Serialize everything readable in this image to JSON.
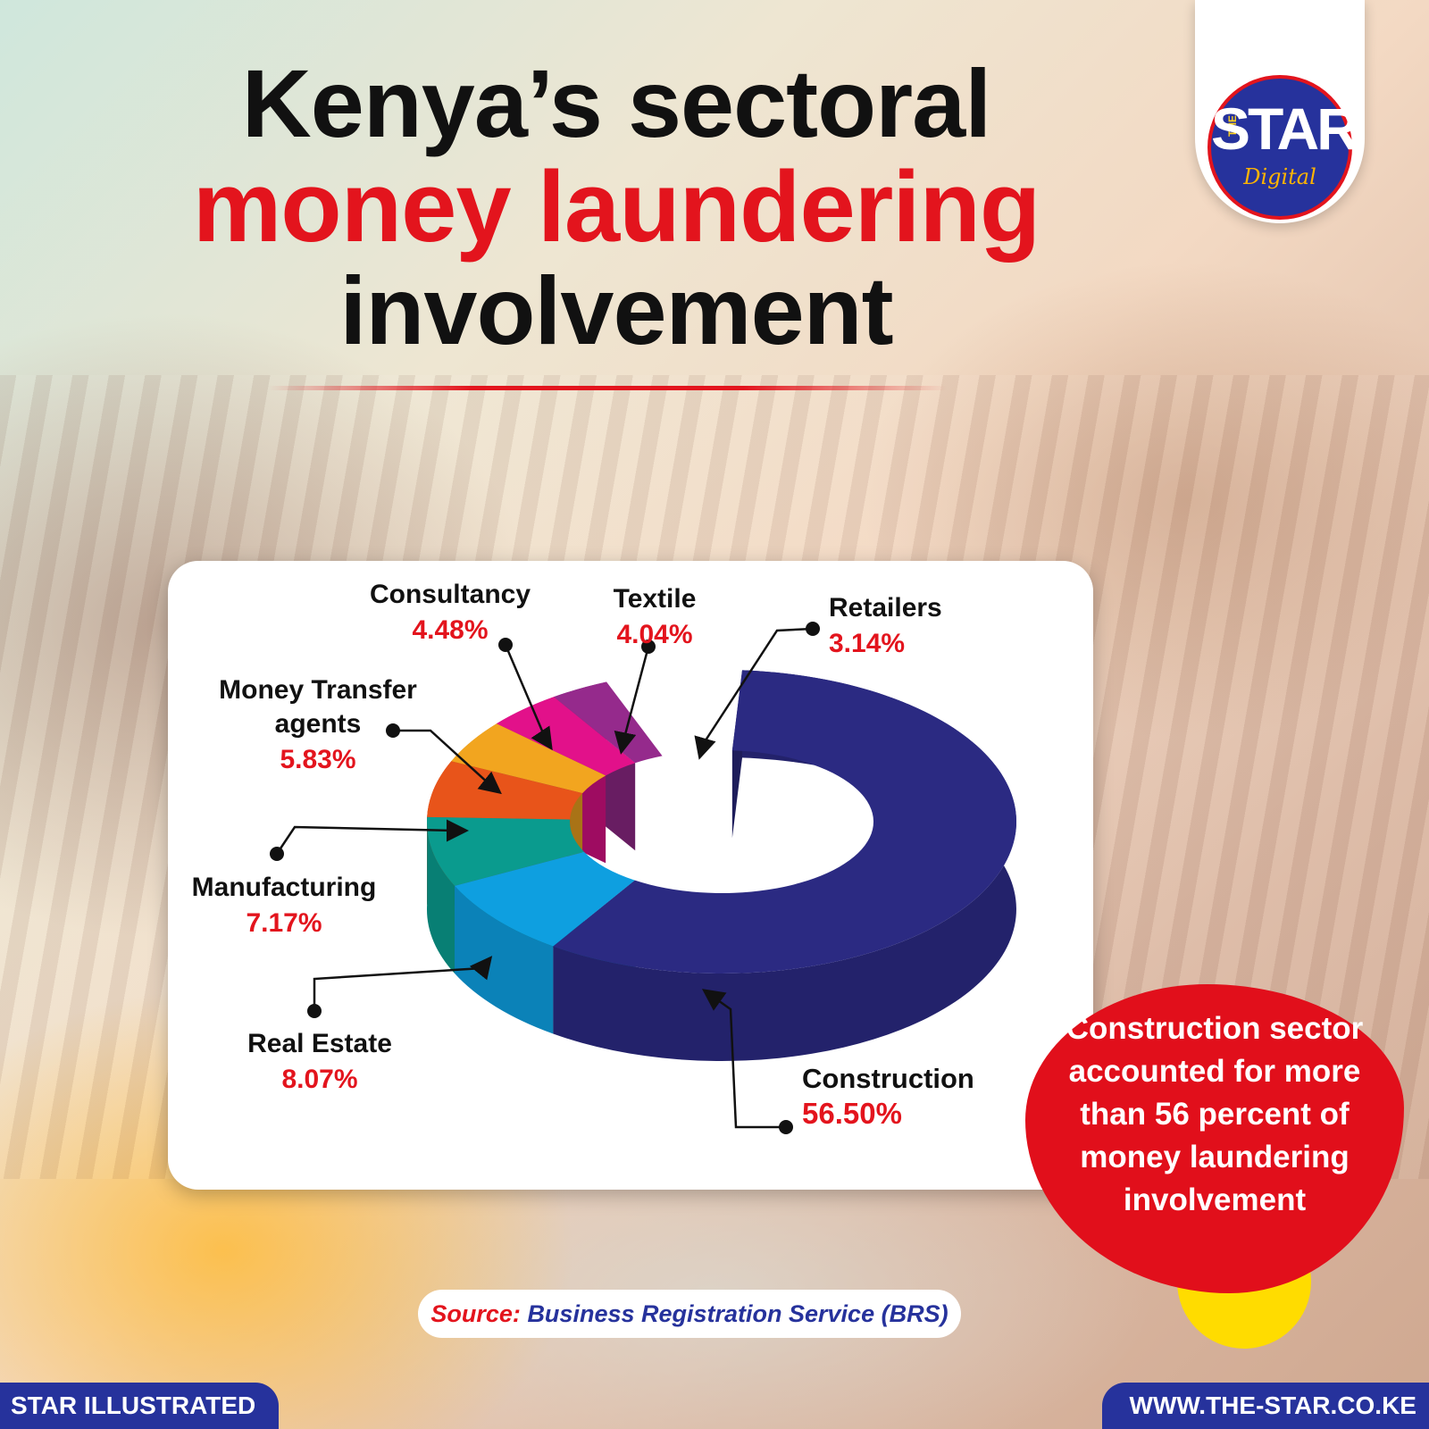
{
  "header": {
    "title_line1": "Kenya’s sectoral",
    "title_line2": "money laundering",
    "title_line3": "involvement"
  },
  "logo": {
    "the": "THE",
    "star": "STAR",
    "digital": "Digital"
  },
  "chart_data": {
    "type": "pie",
    "style": "3d-donut",
    "title": "Kenya’s sectoral money laundering involvement",
    "slices": [
      {
        "label": "Construction",
        "value": 56.5,
        "value_text": "56.50%",
        "color": "#2b2a82"
      },
      {
        "label": "Real Estate",
        "value": 8.07,
        "value_text": "8.07%",
        "color": "#0e9fe0"
      },
      {
        "label": "Manufacturing",
        "value": 7.17,
        "value_text": "7.17%",
        "color": "#0a9b8e"
      },
      {
        "label": "Money Transfer agents",
        "label_lines": [
          "Money Transfer",
          "agents"
        ],
        "value": 5.83,
        "value_text": "5.83%",
        "color": "#e8541a"
      },
      {
        "label": "Consultancy",
        "value": 4.48,
        "value_text": "4.48%",
        "color": "#f2a51f"
      },
      {
        "label": "Textile",
        "value": 4.04,
        "value_text": "4.04%",
        "color": "#e2118a"
      },
      {
        "label": "Retailers",
        "value": 3.14,
        "value_text": "3.14%",
        "color": "#952a8c"
      }
    ]
  },
  "callout": {
    "text": "Construction sector accounted for more than 56 percent of money laundering involvement"
  },
  "source": {
    "prefix": "Source:",
    "value": "Business Registration Service (BRS)"
  },
  "footer": {
    "left": "STAR ILLUSTRATED",
    "right": "WWW.THE-STAR.CO.KE"
  },
  "colors": {
    "brand_red": "#e3141d",
    "brand_blue": "#26329c",
    "accent_yellow": "#ffdc00"
  }
}
